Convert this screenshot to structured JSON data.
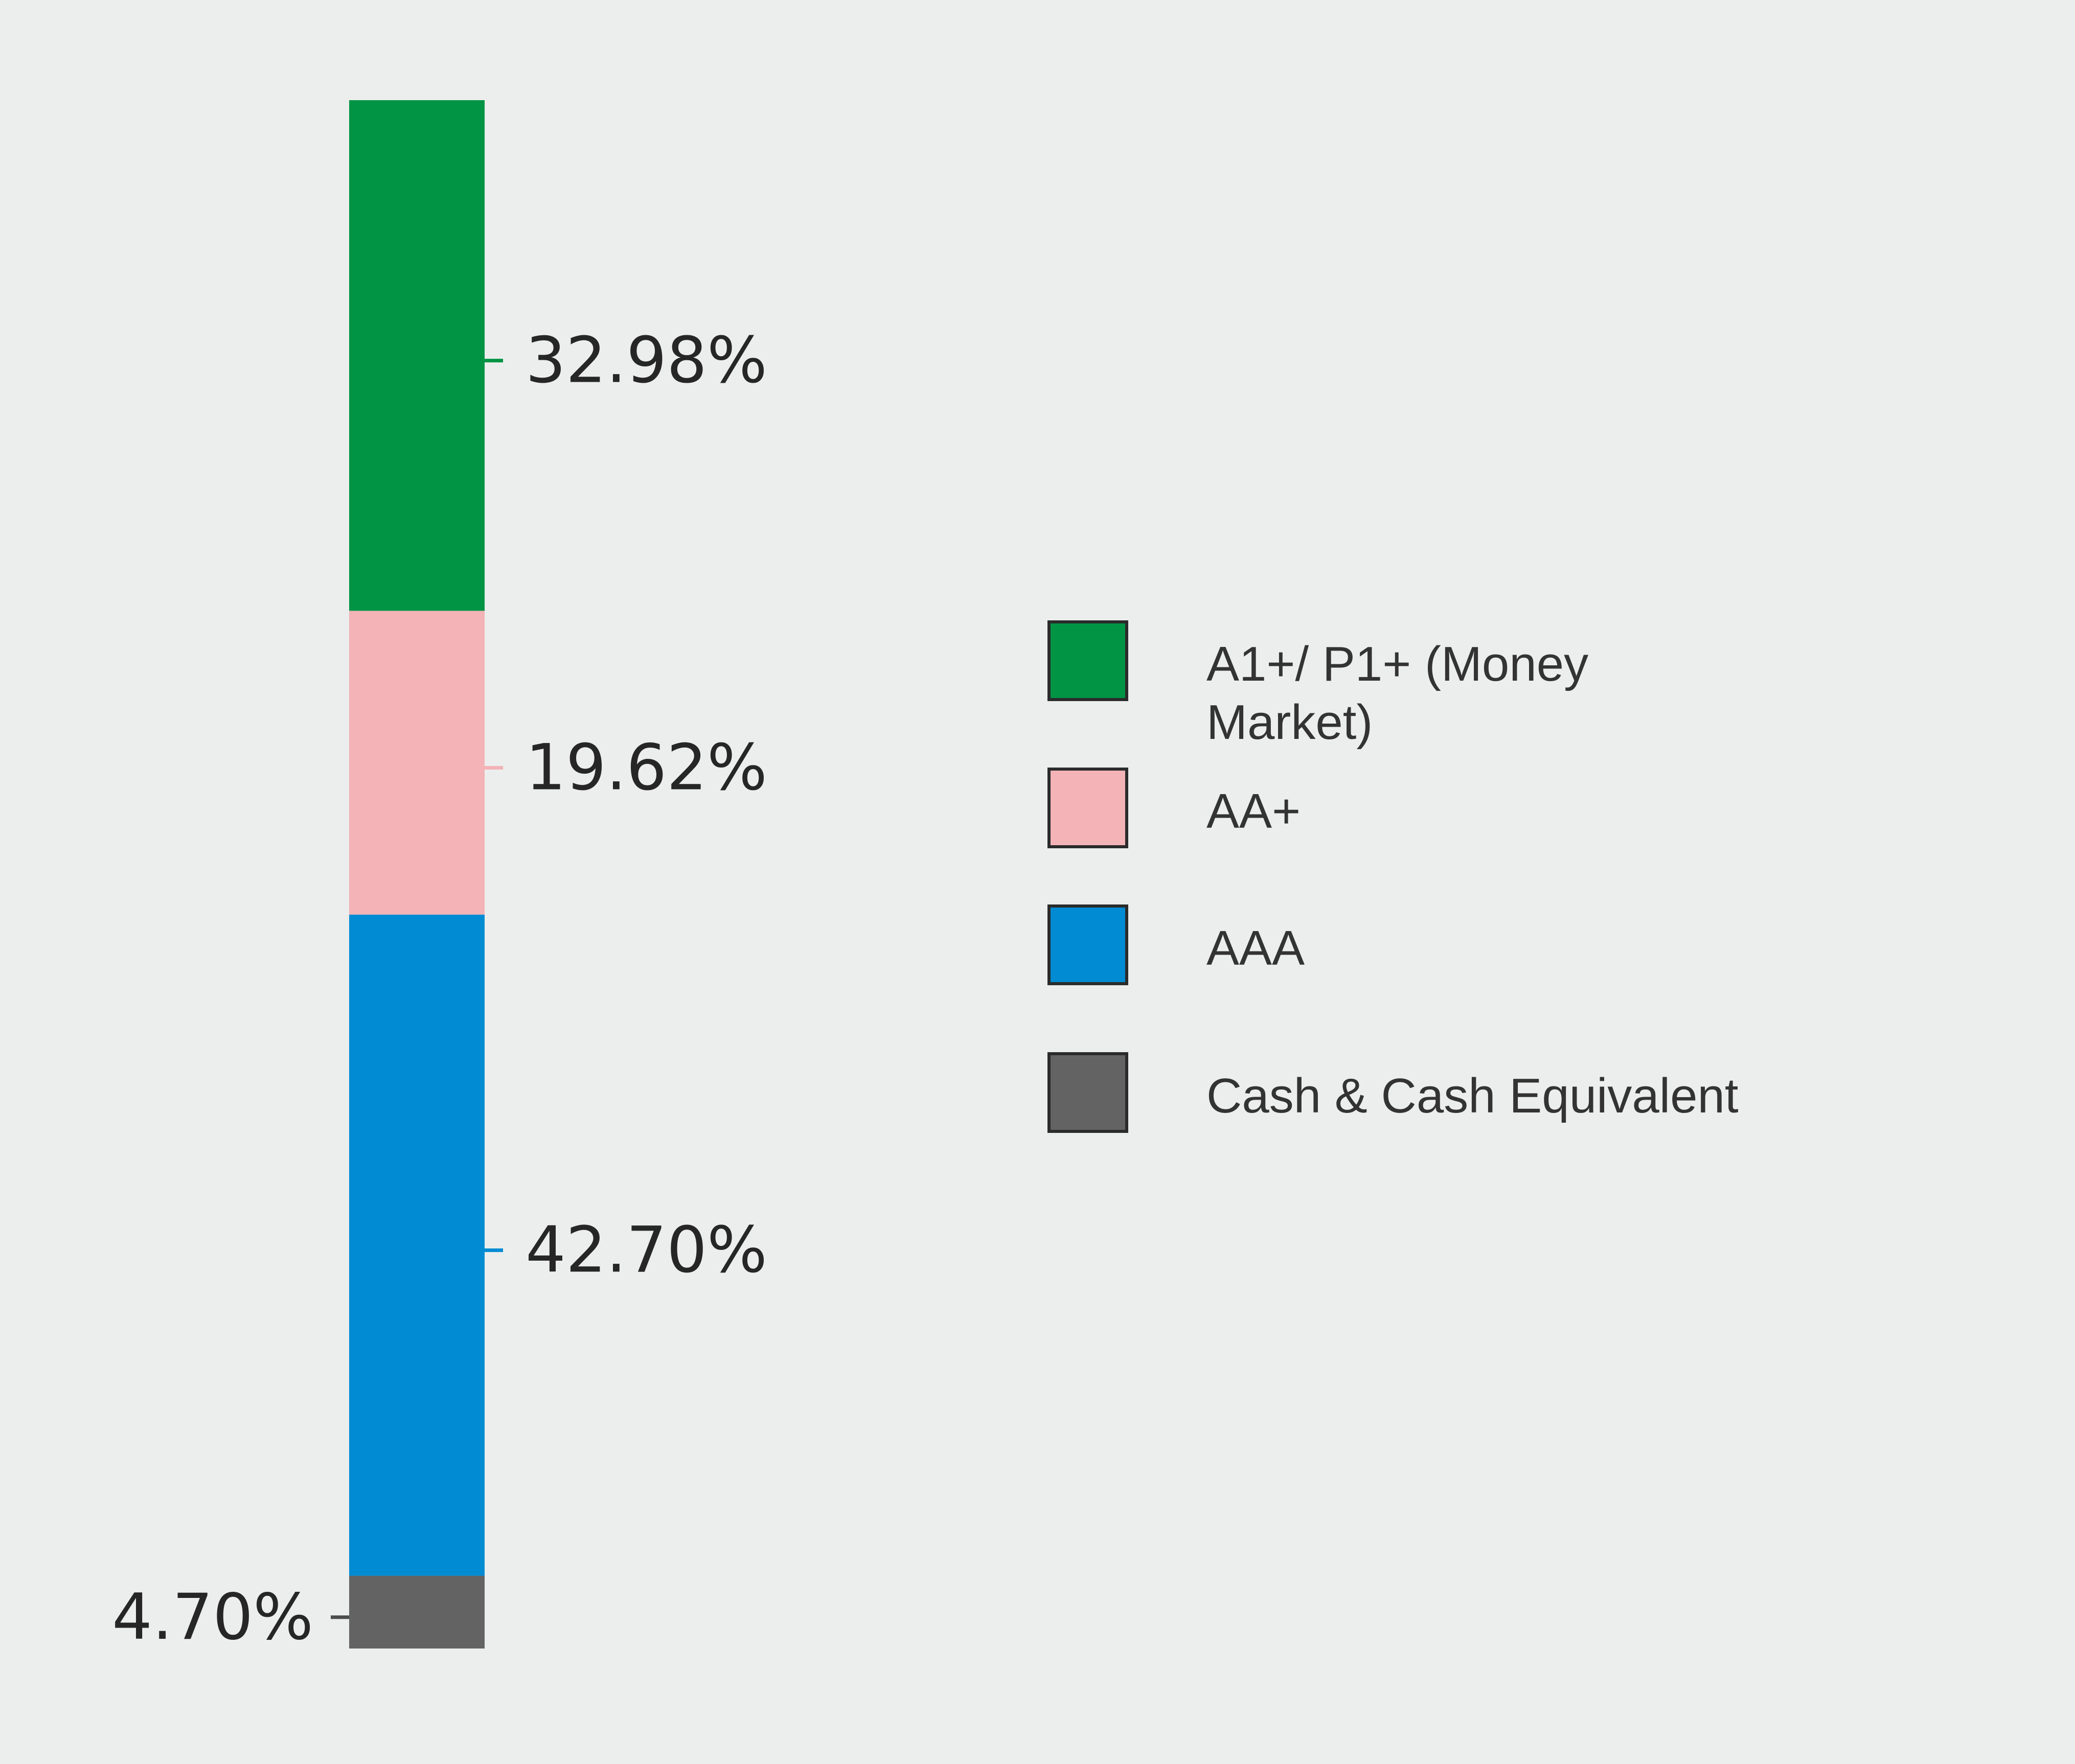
{
  "chart_data": {
    "type": "bar",
    "stacked": true,
    "orientation": "vertical",
    "categories": [
      ""
    ],
    "series": [
      {
        "name": "Cash & Cash Equivalent",
        "values": [
          4.7
        ],
        "label": "4.70%",
        "color": "#636363"
      },
      {
        "name": "AAA",
        "values": [
          42.7
        ],
        "label": "42.70%",
        "color": "#008bd2"
      },
      {
        "name": "AA+",
        "values": [
          19.62
        ],
        "label": "19.62%",
        "color": "#f3b3b7"
      },
      {
        "name": "A1+/ P1+ (Money Market)",
        "values": [
          32.98
        ],
        "label": "32.98%",
        "color": "#009444"
      }
    ],
    "legend": {
      "placement": "right",
      "entries": [
        {
          "lines": [
            "A1+/ P1+ (Money",
            "Market)"
          ],
          "color": "#009444"
        },
        {
          "lines": [
            "AA+"
          ],
          "color": "#f3b3b7"
        },
        {
          "lines": [
            "AAA"
          ],
          "color": "#008bd2"
        },
        {
          "lines": [
            "Cash & Cash Equivalent"
          ],
          "color": "#636363"
        }
      ]
    },
    "title": "",
    "xlabel": "",
    "ylabel": "",
    "ylim": [
      0,
      100
    ],
    "grid": false
  }
}
